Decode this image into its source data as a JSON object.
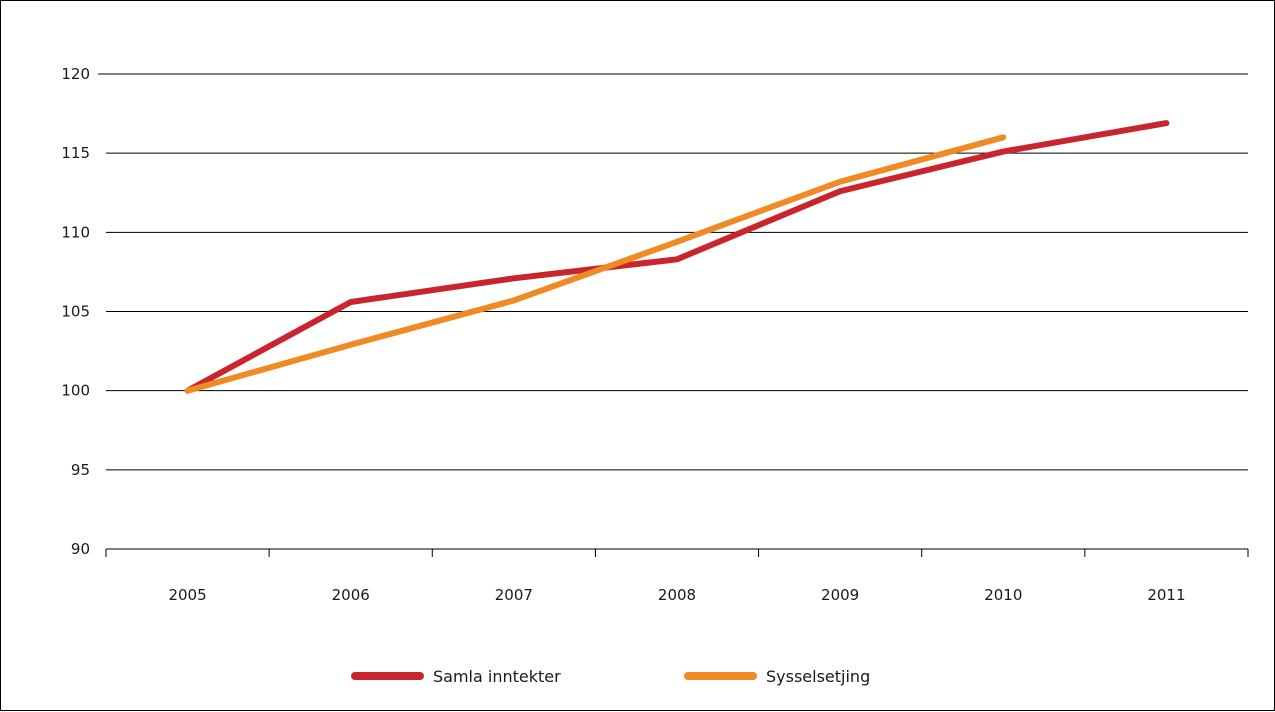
{
  "chart_data": {
    "type": "line",
    "categories": [
      "2005",
      "2006",
      "2007",
      "2008",
      "2009",
      "2010",
      "2011"
    ],
    "ylim": [
      90,
      120
    ],
    "yticks": [
      90,
      95,
      100,
      105,
      110,
      115,
      120
    ],
    "grid": true,
    "legend_position": "bottom-center",
    "series": [
      {
        "name": "Samla inntekter",
        "color": "#c8262c",
        "values": [
          100,
          105.6,
          107.1,
          108.3,
          112.6,
          115.1,
          116.9
        ]
      },
      {
        "name": "Sysselsetjing",
        "color": "#f08a24",
        "values": [
          100,
          102.9,
          105.7,
          109.4,
          113.2,
          116.0,
          null
        ]
      }
    ]
  }
}
